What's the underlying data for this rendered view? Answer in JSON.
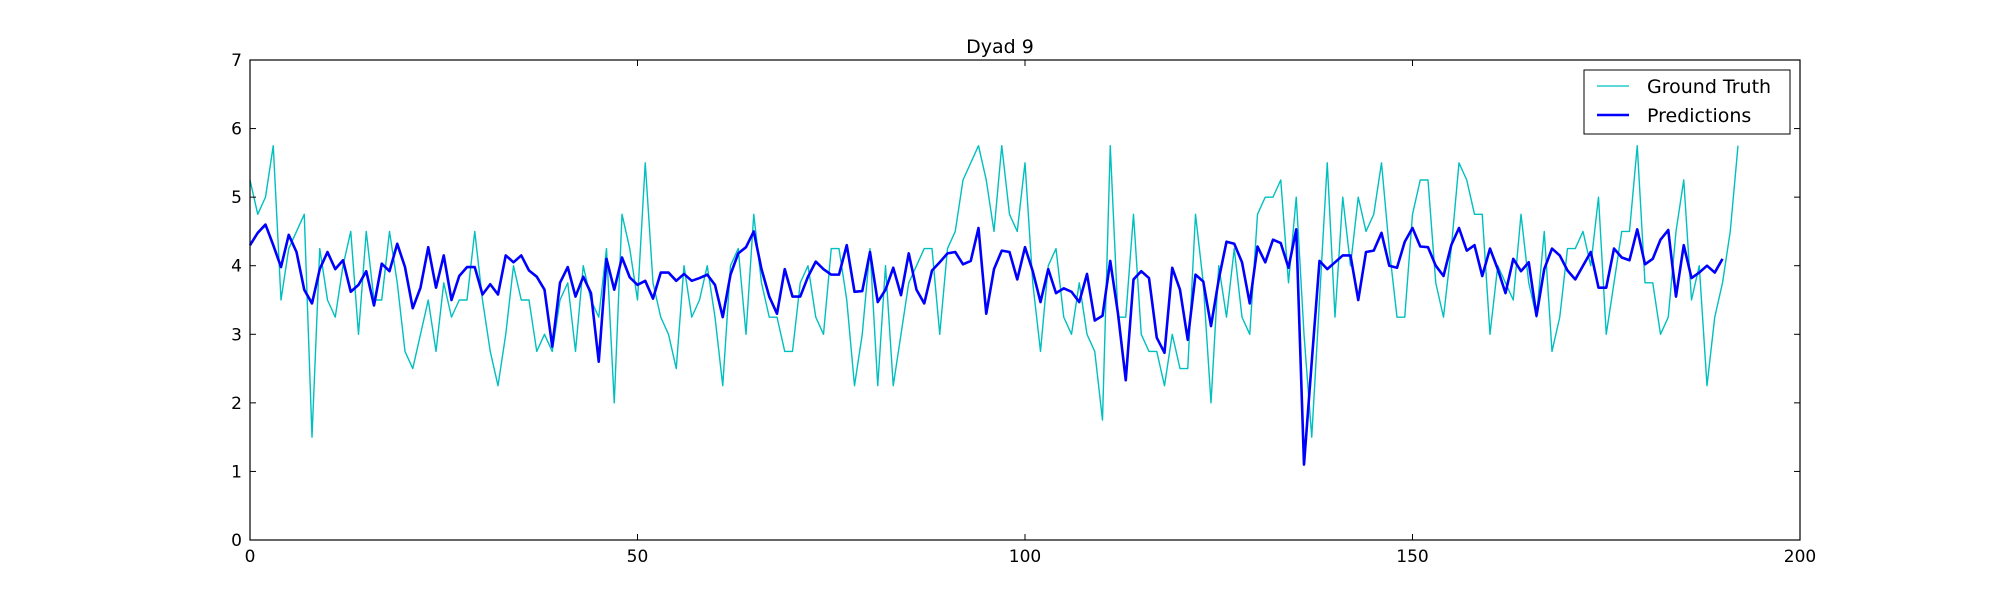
{
  "chart_data": {
    "type": "line",
    "title": "Dyad 9",
    "xlabel": "",
    "ylabel": "",
    "xlim": [
      0,
      200
    ],
    "ylim": [
      0,
      7
    ],
    "xticks": [
      0,
      50,
      100,
      150,
      200
    ],
    "yticks": [
      0,
      1,
      2,
      3,
      4,
      5,
      6,
      7
    ],
    "grid": false,
    "legend_position": "top-right",
    "series": [
      {
        "name": "Ground Truth",
        "color": "#00bfbf",
        "values": [
          5.25,
          4.75,
          5.0,
          5.75,
          3.5,
          4.25,
          4.5,
          4.75,
          1.5,
          4.25,
          3.5,
          3.25,
          4.0,
          4.5,
          3.0,
          4.5,
          3.5,
          3.5,
          4.5,
          3.75,
          2.75,
          2.5,
          3.0,
          3.5,
          2.75,
          3.75,
          3.25,
          3.5,
          3.5,
          4.5,
          3.5,
          2.75,
          2.25,
          3.0,
          4.0,
          3.5,
          3.5,
          2.75,
          3.0,
          2.75,
          3.5,
          3.75,
          2.75,
          4.0,
          3.5,
          3.25,
          4.25,
          2.0,
          4.75,
          4.25,
          3.5,
          5.5,
          3.75,
          3.25,
          3.0,
          2.5,
          4.0,
          3.25,
          3.5,
          4.0,
          3.25,
          2.25,
          4.0,
          4.25,
          3.0,
          4.75,
          3.75,
          3.25,
          3.25,
          2.75,
          2.75,
          3.75,
          4.0,
          3.25,
          3.0,
          4.25,
          4.25,
          3.5,
          2.25,
          3.0,
          4.25,
          2.25,
          4.0,
          2.25,
          3.0,
          3.75,
          4.0,
          4.25,
          4.25,
          3.0,
          4.25,
          4.5,
          5.25,
          5.5,
          5.75,
          5.25,
          4.5,
          5.75,
          4.75,
          4.5,
          5.5,
          3.75,
          2.75,
          4.0,
          4.25,
          3.25,
          3.0,
          3.75,
          3.0,
          2.75,
          1.75,
          5.75,
          3.25,
          3.25,
          4.75,
          3.0,
          2.75,
          2.75,
          2.25,
          3.0,
          2.5,
          2.5,
          4.75,
          3.75,
          2.0,
          4.0,
          3.25,
          4.25,
          3.25,
          3.0,
          4.75,
          5.0,
          5.0,
          5.25,
          3.75,
          5.0,
          3.0,
          1.5,
          3.5,
          5.5,
          3.25,
          5.0,
          4.0,
          5.0,
          4.5,
          4.75,
          5.5,
          4.25,
          3.25,
          3.25,
          4.75,
          5.25,
          5.25,
          3.75,
          3.25,
          4.25,
          5.5,
          5.25,
          4.75,
          4.75,
          3.0,
          4.0,
          3.75,
          3.5,
          4.75,
          3.75,
          3.25,
          4.5,
          2.75,
          3.25,
          4.25,
          4.25,
          4.5,
          4.0,
          5.0,
          3.0,
          3.75,
          4.5,
          4.5,
          5.75,
          3.75,
          3.75,
          3.0,
          3.25,
          4.5,
          5.25,
          3.5,
          4.0,
          2.25,
          3.25,
          3.75,
          4.5,
          5.75
        ]
      },
      {
        "name": "Predictions",
        "color": "#0000ff",
        "values": [
          4.3,
          4.48,
          4.6,
          4.3,
          3.98,
          4.45,
          4.2,
          3.65,
          3.45,
          3.95,
          4.2,
          3.95,
          4.08,
          3.62,
          3.72,
          3.92,
          3.42,
          4.03,
          3.92,
          4.32,
          3.98,
          3.38,
          3.68,
          4.27,
          3.68,
          4.15,
          3.5,
          3.85,
          3.98,
          3.98,
          3.58,
          3.73,
          3.58,
          4.15,
          4.05,
          4.15,
          3.93,
          3.84,
          3.65,
          2.82,
          3.75,
          3.98,
          3.55,
          3.84,
          3.6,
          2.6,
          4.1,
          3.65,
          4.12,
          3.83,
          3.72,
          3.78,
          3.52,
          3.9,
          3.9,
          3.78,
          3.88,
          3.78,
          3.82,
          3.87,
          3.72,
          3.25,
          3.87,
          4.18,
          4.27,
          4.5,
          3.95,
          3.55,
          3.3,
          3.95,
          3.55,
          3.55,
          3.84,
          4.06,
          3.95,
          3.87,
          3.87,
          4.3,
          3.62,
          3.63,
          4.2,
          3.47,
          3.65,
          3.97,
          3.57,
          4.18,
          3.65,
          3.45,
          3.93,
          4.05,
          4.18,
          4.2,
          4.02,
          4.07,
          4.55,
          3.3,
          3.95,
          4.22,
          4.2,
          3.8,
          4.27,
          3.92,
          3.47,
          3.95,
          3.6,
          3.67,
          3.62,
          3.47,
          3.88,
          3.2,
          3.27,
          4.07,
          3.3,
          2.33,
          3.8,
          3.92,
          3.82,
          2.95,
          2.73,
          3.97,
          3.65,
          2.92,
          3.87,
          3.77,
          3.12,
          3.8,
          4.35,
          4.32,
          4.05,
          3.45,
          4.28,
          4.05,
          4.38,
          4.33,
          3.97,
          4.53,
          1.1,
          2.6,
          4.07,
          3.95,
          4.05,
          4.15,
          4.15,
          3.5,
          4.2,
          4.22,
          4.48,
          4.0,
          3.97,
          4.35,
          4.55,
          4.28,
          4.27,
          4.0,
          3.85,
          4.3,
          4.55,
          4.22,
          4.3,
          3.85,
          4.25,
          3.95,
          3.6,
          4.1,
          3.92,
          4.05,
          3.27,
          3.95,
          4.25,
          4.15,
          3.93,
          3.8,
          4.0,
          4.2,
          3.68,
          3.68,
          4.25,
          4.12,
          4.08,
          4.53,
          4.02,
          4.1,
          4.38,
          4.52,
          3.55,
          4.3,
          3.82,
          3.9,
          4.0,
          3.9,
          4.1
        ]
      }
    ]
  }
}
